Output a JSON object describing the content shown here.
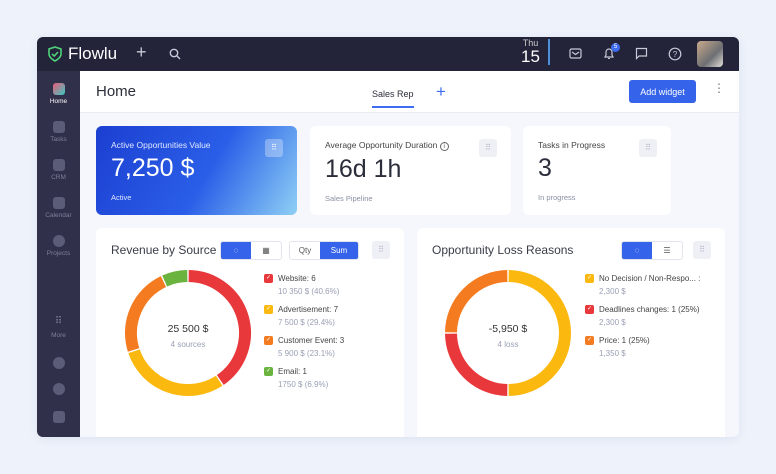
{
  "app": {
    "name": "Flowlu",
    "date_day": "Thu",
    "date_num": "15",
    "notif_count": "5"
  },
  "sidebar": {
    "items": [
      {
        "label": "Home",
        "active": true
      },
      {
        "label": "Tasks"
      },
      {
        "label": "CRM"
      },
      {
        "label": "Calendar"
      },
      {
        "label": "Projects"
      },
      {
        "label": "More"
      }
    ]
  },
  "header": {
    "title": "Home",
    "tab": "Sales Rep",
    "add_widget": "Add widget"
  },
  "cards": [
    {
      "label": "Active Opportunities Value",
      "value": "7,250 $",
      "sub": "Active"
    },
    {
      "label": "Average Opportunity Duration",
      "value": "16d 1h",
      "sub": "Sales Pipeline"
    },
    {
      "label": "Tasks in Progress",
      "value": "3",
      "sub": "In progress"
    }
  ],
  "revenue": {
    "title": "Revenue by Source",
    "qty": "Qty",
    "sum": "Sum",
    "total": "25 500 $",
    "total_sub": "4 sources",
    "items": [
      {
        "label": "Website: 6",
        "sub": "10 350 $ (40.6%)",
        "value": 40.6,
        "color": "#e8383b"
      },
      {
        "label": "Advertisement: 7",
        "sub": "7 500 $ (29.4%)",
        "value": 29.4,
        "color": "#fbb80f"
      },
      {
        "label": "Customer Event: 3",
        "sub": "5 900 $ (23.1%)",
        "value": 23.1,
        "color": "#f47b20"
      },
      {
        "label": "Email: 1",
        "sub": "1750 $ (6.9%)",
        "value": 6.9,
        "color": "#6bb33f"
      }
    ]
  },
  "loss": {
    "title": "Opportunity Loss Reasons",
    "total": "-5,950 $",
    "total_sub": "4 loss",
    "items": [
      {
        "label": "No Decision / Non-Respo... :",
        "sub": "2,300 $",
        "value": 50,
        "color": "#fbb80f"
      },
      {
        "label": "Deadlines changes: 1 (25%)",
        "sub": "2,300 $",
        "value": 25,
        "color": "#e8383b"
      },
      {
        "label": "Price: 1 (25%)",
        "sub": "1,350 $",
        "value": 25,
        "color": "#f47b20"
      }
    ]
  }
}
